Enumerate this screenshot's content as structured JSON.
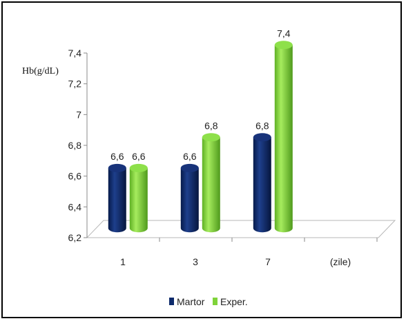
{
  "chart_data": {
    "type": "bar",
    "ylabel": "Hb(g/dL)",
    "categories": [
      "1",
      "3",
      "7",
      "(zile)"
    ],
    "series": [
      {
        "name": "Martor",
        "values": [
          6.6,
          6.6,
          6.8,
          null
        ],
        "labels": [
          "6,6",
          "6,6",
          "6,8",
          ""
        ]
      },
      {
        "name": "Exper.",
        "values": [
          6.6,
          6.8,
          7.4,
          null
        ],
        "labels": [
          "6,6",
          "6,8",
          "7,4",
          ""
        ]
      }
    ],
    "ylim": [
      6.2,
      7.4
    ],
    "yticks": [
      "6,2",
      "6,4",
      "6,6",
      "6,8",
      "7",
      "7,2",
      "7,4"
    ],
    "legend_placement": "bottom",
    "style": "3d-cylinder",
    "colors": {
      "Martor": "#0d2a6b",
      "Exper.": "#7fd33a"
    }
  }
}
